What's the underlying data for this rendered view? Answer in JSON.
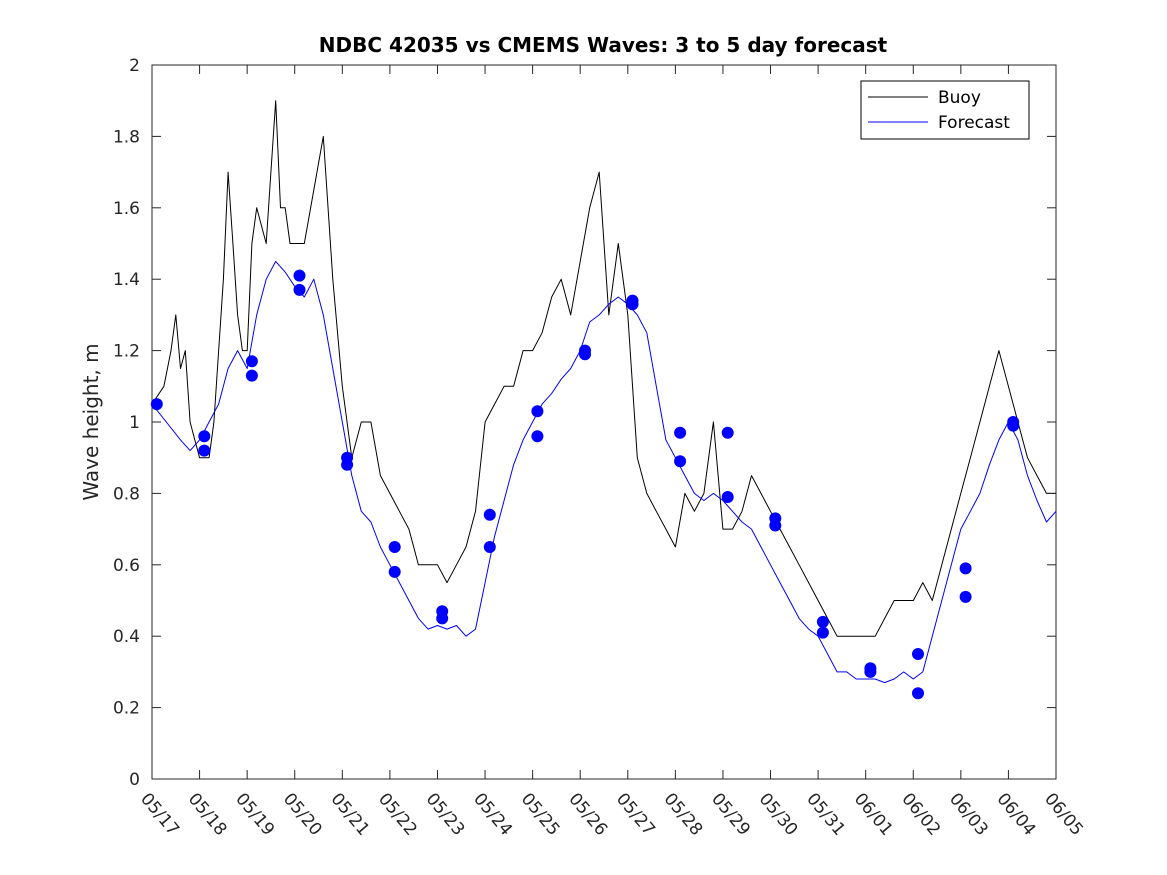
{
  "chart_data": {
    "type": "line",
    "title": "NDBC 42035 vs CMEMS Waves: 3 to 5 day forecast",
    "xlabel": "",
    "ylabel": "Wave height, m",
    "ylim": [
      0,
      2
    ],
    "xlim_days": [
      0,
      19
    ],
    "yticks": [
      0,
      0.2,
      0.4,
      0.6,
      0.8,
      1,
      1.2,
      1.4,
      1.6,
      1.8,
      2
    ],
    "ytick_labels": [
      "0",
      "0.2",
      "0.4",
      "0.6",
      "0.8",
      "1",
      "1.2",
      "1.4",
      "1.6",
      "1.8",
      "2"
    ],
    "xtick_labels": [
      "05/17",
      "05/18",
      "05/19",
      "05/20",
      "05/21",
      "05/22",
      "05/23",
      "05/24",
      "05/25",
      "05/26",
      "05/27",
      "05/28",
      "05/29",
      "05/30",
      "05/31",
      "06/01",
      "06/02",
      "06/03",
      "06/04",
      "06/05"
    ],
    "grid": false,
    "legend_position": "top-right",
    "colors": {
      "buoy": "#000000",
      "forecast": "#0000ff",
      "marker": "#0000ff"
    },
    "series": [
      {
        "name": "Buoy",
        "x": [
          0,
          0.25,
          0.4,
          0.5,
          0.6,
          0.7,
          0.8,
          0.9,
          1.0,
          1.2,
          1.3,
          1.5,
          1.6,
          1.7,
          1.8,
          1.9,
          2.0,
          2.1,
          2.2,
          2.4,
          2.5,
          2.6,
          2.7,
          2.8,
          2.9,
          3.0,
          3.2,
          3.4,
          3.6,
          3.8,
          4.0,
          4.2,
          4.4,
          4.6,
          4.8,
          5.0,
          5.2,
          5.4,
          5.5,
          5.6,
          5.8,
          6.0,
          6.2,
          6.4,
          6.6,
          6.8,
          7.0,
          7.2,
          7.4,
          7.6,
          7.8,
          8.0,
          8.2,
          8.4,
          8.6,
          8.8,
          9.0,
          9.2,
          9.4,
          9.6,
          9.8,
          10.0,
          10.2,
          10.4,
          10.6,
          10.8,
          11.0,
          11.2,
          11.4,
          11.6,
          11.8,
          12.0,
          12.2,
          12.4,
          12.6,
          12.8,
          13.0,
          13.2,
          13.4,
          13.6,
          13.8,
          14.0,
          14.2,
          14.4,
          14.6,
          14.8,
          15.0,
          15.2,
          15.4,
          15.6,
          15.8,
          16.0,
          16.2,
          16.4,
          16.6,
          16.8,
          17.0,
          17.2,
          17.4,
          17.6,
          17.8,
          18.0,
          18.2,
          18.4,
          18.6,
          18.8,
          19.0
        ],
        "y": [
          1.05,
          1.1,
          1.2,
          1.3,
          1.15,
          1.2,
          1.0,
          0.95,
          0.9,
          0.9,
          1.0,
          1.4,
          1.7,
          1.5,
          1.3,
          1.2,
          1.2,
          1.5,
          1.6,
          1.5,
          1.7,
          1.9,
          1.6,
          1.6,
          1.5,
          1.5,
          1.5,
          1.65,
          1.8,
          1.4,
          1.1,
          0.9,
          1.0,
          1.0,
          0.85,
          0.8,
          0.75,
          0.7,
          0.65,
          0.6,
          0.6,
          0.6,
          0.55,
          0.6,
          0.65,
          0.75,
          1.0,
          1.05,
          1.1,
          1.1,
          1.2,
          1.2,
          1.25,
          1.35,
          1.4,
          1.3,
          1.45,
          1.6,
          1.7,
          1.3,
          1.5,
          1.3,
          0.9,
          0.8,
          0.75,
          0.7,
          0.65,
          0.8,
          0.75,
          0.8,
          1.0,
          0.7,
          0.7,
          0.75,
          0.85,
          0.8,
          0.75,
          0.7,
          0.65,
          0.6,
          0.55,
          0.5,
          0.45,
          0.4,
          0.4,
          0.4,
          0.4,
          0.4,
          0.45,
          0.5,
          0.5,
          0.5,
          0.55,
          0.5,
          0.6,
          0.7,
          0.8,
          0.9,
          1.0,
          1.1,
          1.2,
          1.1,
          1.0,
          0.9,
          0.85,
          0.8,
          0.8
        ]
      },
      {
        "name": "Forecast",
        "x": [
          0,
          0.3,
          0.6,
          0.8,
          1.0,
          1.2,
          1.4,
          1.6,
          1.8,
          2.0,
          2.2,
          2.4,
          2.6,
          2.8,
          3.0,
          3.2,
          3.4,
          3.6,
          3.8,
          4.0,
          4.2,
          4.4,
          4.6,
          4.8,
          5.0,
          5.2,
          5.4,
          5.6,
          5.8,
          6.0,
          6.2,
          6.4,
          6.6,
          6.8,
          7.0,
          7.2,
          7.4,
          7.6,
          7.8,
          8.0,
          8.2,
          8.4,
          8.6,
          8.8,
          9.0,
          9.2,
          9.4,
          9.6,
          9.8,
          10.0,
          10.2,
          10.4,
          10.6,
          10.8,
          11.0,
          11.2,
          11.4,
          11.6,
          11.8,
          12.0,
          12.2,
          12.4,
          12.6,
          12.8,
          13.0,
          13.2,
          13.4,
          13.6,
          13.8,
          14.0,
          14.2,
          14.4,
          14.6,
          14.8,
          15.0,
          15.2,
          15.4,
          15.6,
          15.8,
          16.0,
          16.2,
          16.4,
          16.6,
          16.8,
          17.0,
          17.2,
          17.4,
          17.6,
          17.8,
          18.0,
          18.2,
          18.4,
          18.6,
          18.8,
          19.0
        ],
        "y": [
          1.05,
          1.0,
          0.95,
          0.92,
          0.95,
          1.0,
          1.05,
          1.15,
          1.2,
          1.15,
          1.3,
          1.4,
          1.45,
          1.42,
          1.38,
          1.35,
          1.4,
          1.3,
          1.15,
          1.0,
          0.85,
          0.75,
          0.72,
          0.65,
          0.6,
          0.55,
          0.5,
          0.45,
          0.42,
          0.43,
          0.42,
          0.43,
          0.4,
          0.42,
          0.55,
          0.68,
          0.78,
          0.88,
          0.95,
          1.0,
          1.05,
          1.08,
          1.12,
          1.15,
          1.2,
          1.28,
          1.3,
          1.33,
          1.35,
          1.33,
          1.3,
          1.25,
          1.1,
          0.95,
          0.9,
          0.85,
          0.8,
          0.78,
          0.8,
          0.78,
          0.75,
          0.72,
          0.7,
          0.65,
          0.6,
          0.55,
          0.5,
          0.45,
          0.42,
          0.4,
          0.35,
          0.3,
          0.3,
          0.28,
          0.28,
          0.28,
          0.27,
          0.28,
          0.3,
          0.28,
          0.3,
          0.4,
          0.5,
          0.6,
          0.7,
          0.75,
          0.8,
          0.88,
          0.95,
          1.0,
          0.95,
          0.85,
          0.78,
          0.72,
          0.75
        ]
      }
    ],
    "forecast_markers": {
      "x": [
        0.1,
        1.1,
        1.1,
        2.1,
        2.1,
        3.1,
        3.1,
        4.1,
        4.1,
        5.1,
        5.1,
        6.1,
        6.1,
        7.1,
        7.1,
        8.1,
        8.1,
        9.1,
        9.1,
        10.1,
        10.1,
        11.1,
        11.1,
        12.1,
        12.1,
        13.1,
        13.1,
        14.1,
        14.1,
        15.1,
        15.1,
        16.1,
        16.1,
        17.1,
        17.1,
        18.1,
        18.1
      ],
      "y": [
        1.05,
        0.96,
        0.92,
        1.17,
        1.13,
        1.41,
        1.37,
        0.9,
        0.88,
        0.65,
        0.58,
        0.47,
        0.45,
        0.74,
        0.65,
        1.03,
        0.96,
        1.2,
        1.19,
        1.34,
        1.33,
        0.97,
        0.89,
        0.97,
        0.79,
        0.73,
        0.71,
        0.44,
        0.41,
        0.31,
        0.3,
        0.35,
        0.24,
        0.59,
        0.51,
        1.0,
        0.99
      ]
    }
  }
}
